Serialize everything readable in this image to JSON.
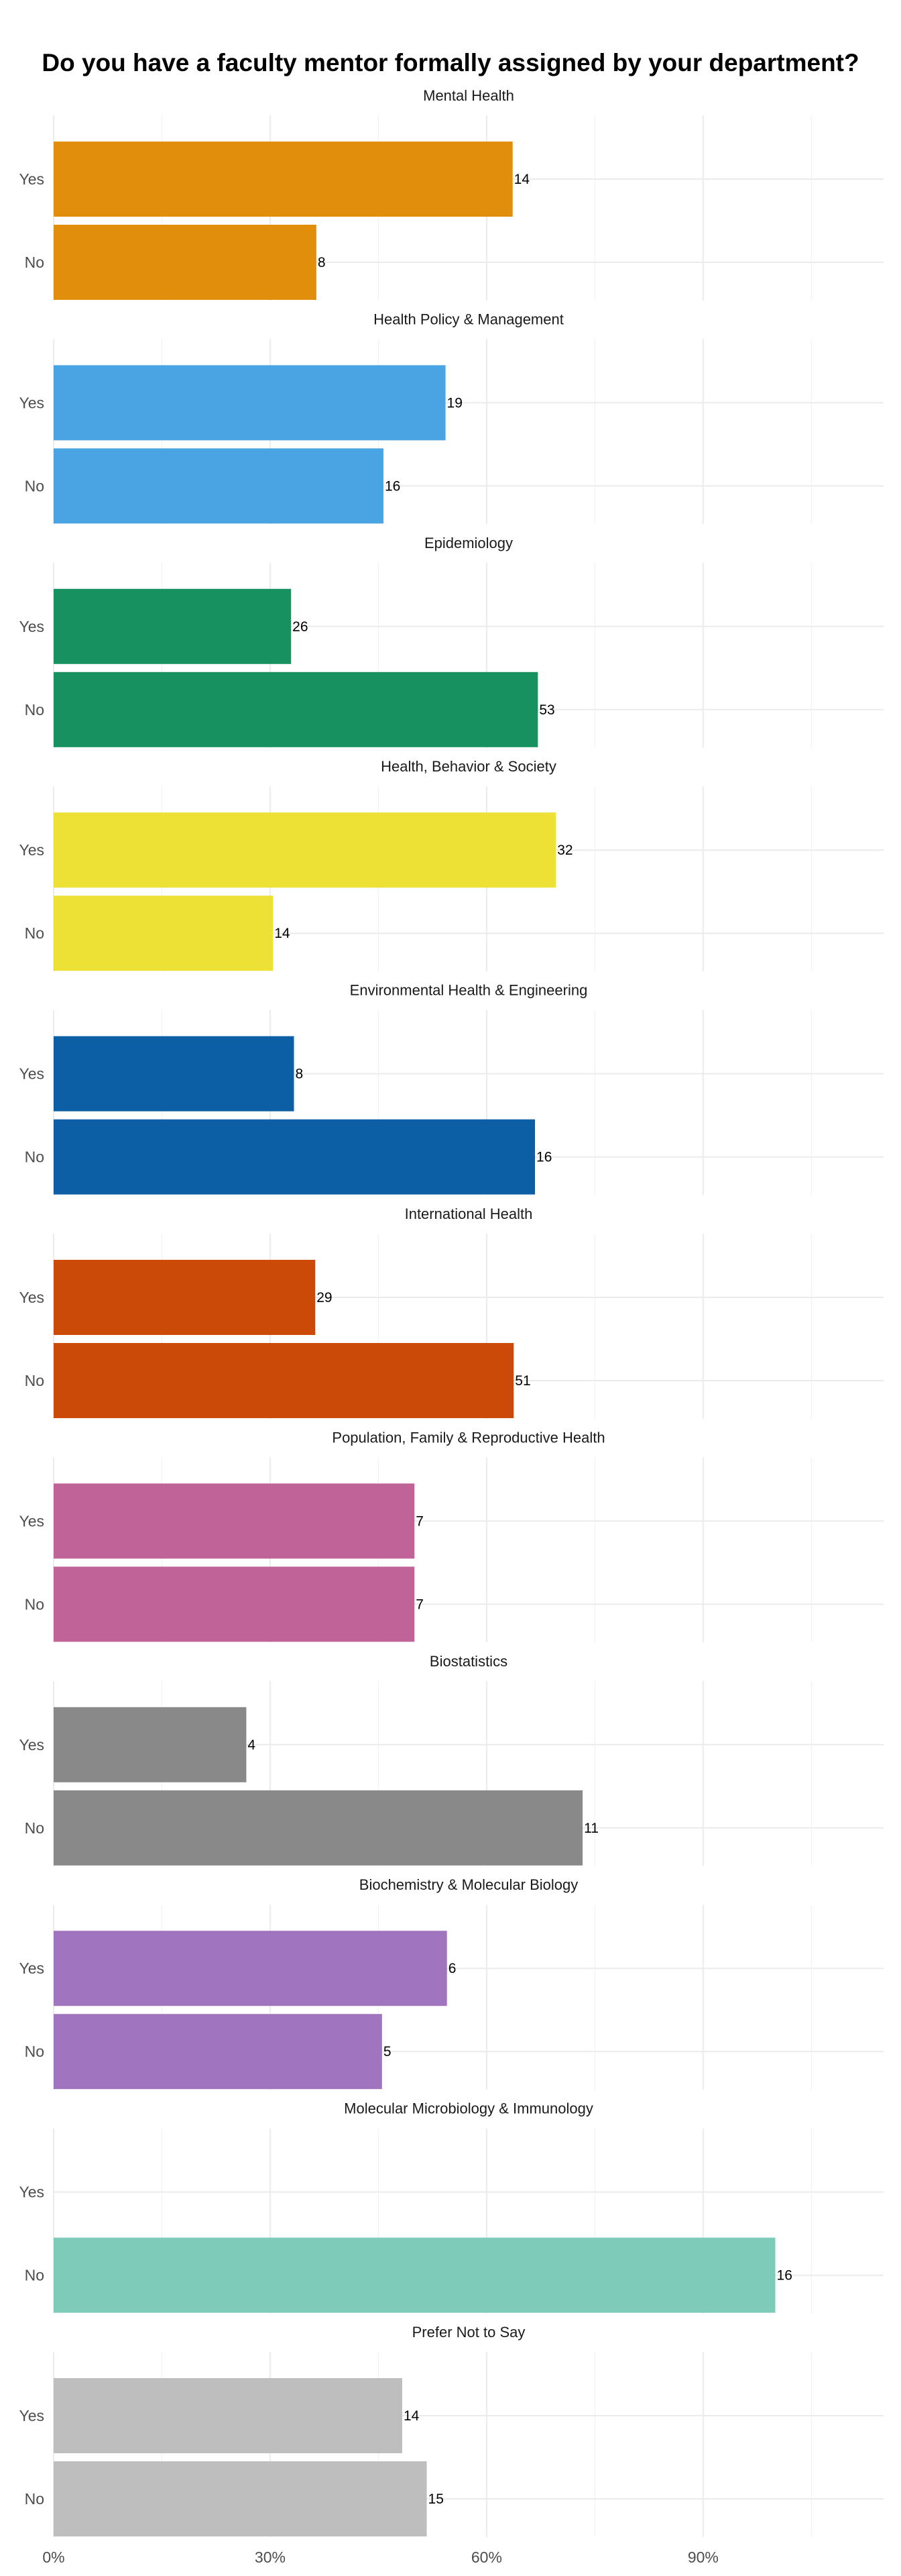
{
  "chart_data": {
    "type": "bar",
    "orientation": "horizontal",
    "title": "Do you have a faculty mentor formally assigned by your department?",
    "xlabel": "",
    "ylabel": "",
    "x_ticks": [
      "0%",
      "30%",
      "60%",
      "90%"
    ],
    "xlim": [
      0,
      1.15
    ],
    "categories": [
      "Yes",
      "No"
    ],
    "grid": true,
    "legend": "none",
    "panels": [
      {
        "name": "Mental Health",
        "color": "#E08E0B",
        "values": [
          0.636,
          0.364
        ],
        "labels": [
          "14",
          "8"
        ]
      },
      {
        "name": "Health Policy & Management",
        "color": "#4AA3E2",
        "values": [
          0.543,
          0.457
        ],
        "labels": [
          "19",
          "16"
        ]
      },
      {
        "name": "Epidemiology",
        "color": "#17915F",
        "values": [
          0.329,
          0.671
        ],
        "labels": [
          "26",
          "53"
        ]
      },
      {
        "name": "Health, Behavior & Society",
        "color": "#EDE135",
        "values": [
          0.696,
          0.304
        ],
        "labels": [
          "32",
          "14"
        ]
      },
      {
        "name": "Environmental Health & Engineering",
        "color": "#0C5FA4",
        "values": [
          0.333,
          0.667
        ],
        "labels": [
          "8",
          "16"
        ]
      },
      {
        "name": "International Health",
        "color": "#CB4A08",
        "values": [
          0.3625,
          0.6375
        ],
        "labels": [
          "29",
          "51"
        ]
      },
      {
        "name": "Population, Family & Reproductive Health",
        "color": "#C06399",
        "values": [
          0.5,
          0.5
        ],
        "labels": [
          "7",
          "7"
        ]
      },
      {
        "name": "Biostatistics",
        "color": "#898989",
        "values": [
          0.267,
          0.733
        ],
        "labels": [
          "4",
          "11"
        ]
      },
      {
        "name": "Biochemistry & Molecular Biology",
        "color": "#A074BE",
        "values": [
          0.545,
          0.455
        ],
        "labels": [
          "6",
          "5"
        ]
      },
      {
        "name": "Molecular Microbiology & Immunology",
        "color": "#7DCBB8",
        "values": [
          null,
          1.0
        ],
        "labels": [
          "",
          "16"
        ]
      },
      {
        "name": "Prefer Not to Say",
        "color": "#BEBEBE",
        "values": [
          0.483,
          0.517
        ],
        "labels": [
          "14",
          "15"
        ]
      }
    ]
  }
}
